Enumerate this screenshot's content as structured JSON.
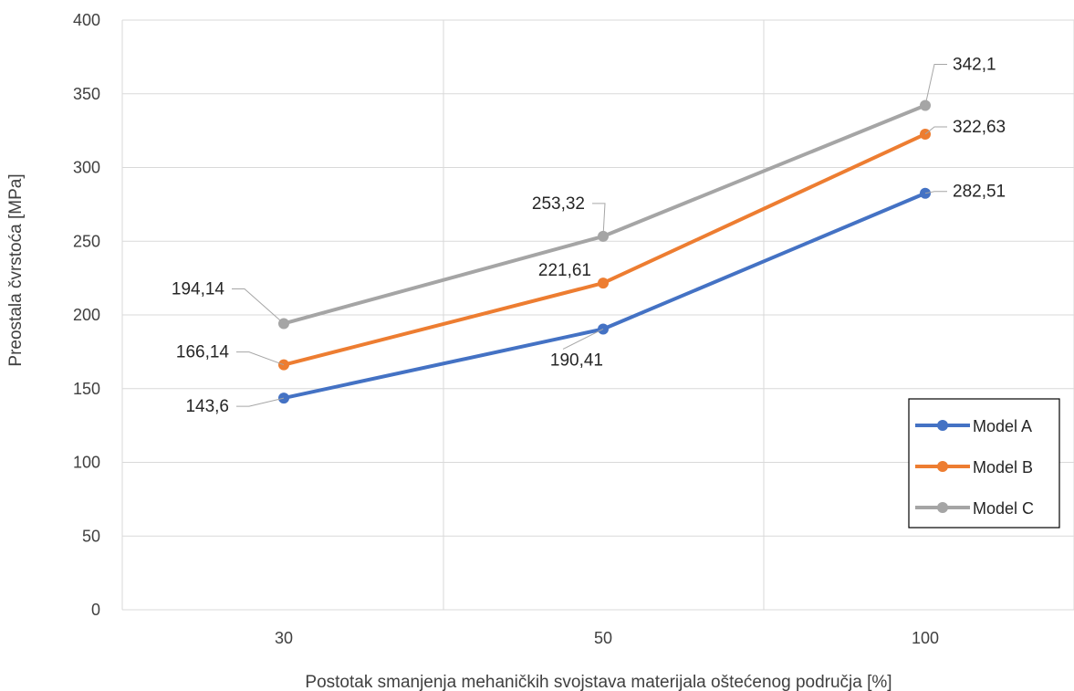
{
  "chart_data": {
    "type": "line",
    "categories": [
      "30",
      "50",
      "100"
    ],
    "xlabel": "Postotak smanjenja mehaničkih svojstava materijala oštećenog područja [%]",
    "ylabel": "Preostala čvrstoća [MPa]",
    "ylim": [
      0,
      400
    ],
    "yticks": [
      0,
      50,
      100,
      150,
      200,
      250,
      300,
      350,
      400
    ],
    "grid": true,
    "legend_position": "bottom-right",
    "series": [
      {
        "name": "Model A",
        "color": "#4472c4",
        "values": [
          143.6,
          190.41,
          282.51
        ],
        "labels": [
          "143,6",
          "190,41",
          "282,51"
        ]
      },
      {
        "name": "Model B",
        "color": "#ed7d31",
        "values": [
          166.14,
          221.61,
          322.63
        ],
        "labels": [
          "166,14",
          "221,61",
          "322,63"
        ]
      },
      {
        "name": "Model C",
        "color": "#a5a5a5",
        "values": [
          194.14,
          253.32,
          342.1
        ],
        "labels": [
          "194,14",
          "253,32",
          "342,1"
        ]
      }
    ]
  }
}
